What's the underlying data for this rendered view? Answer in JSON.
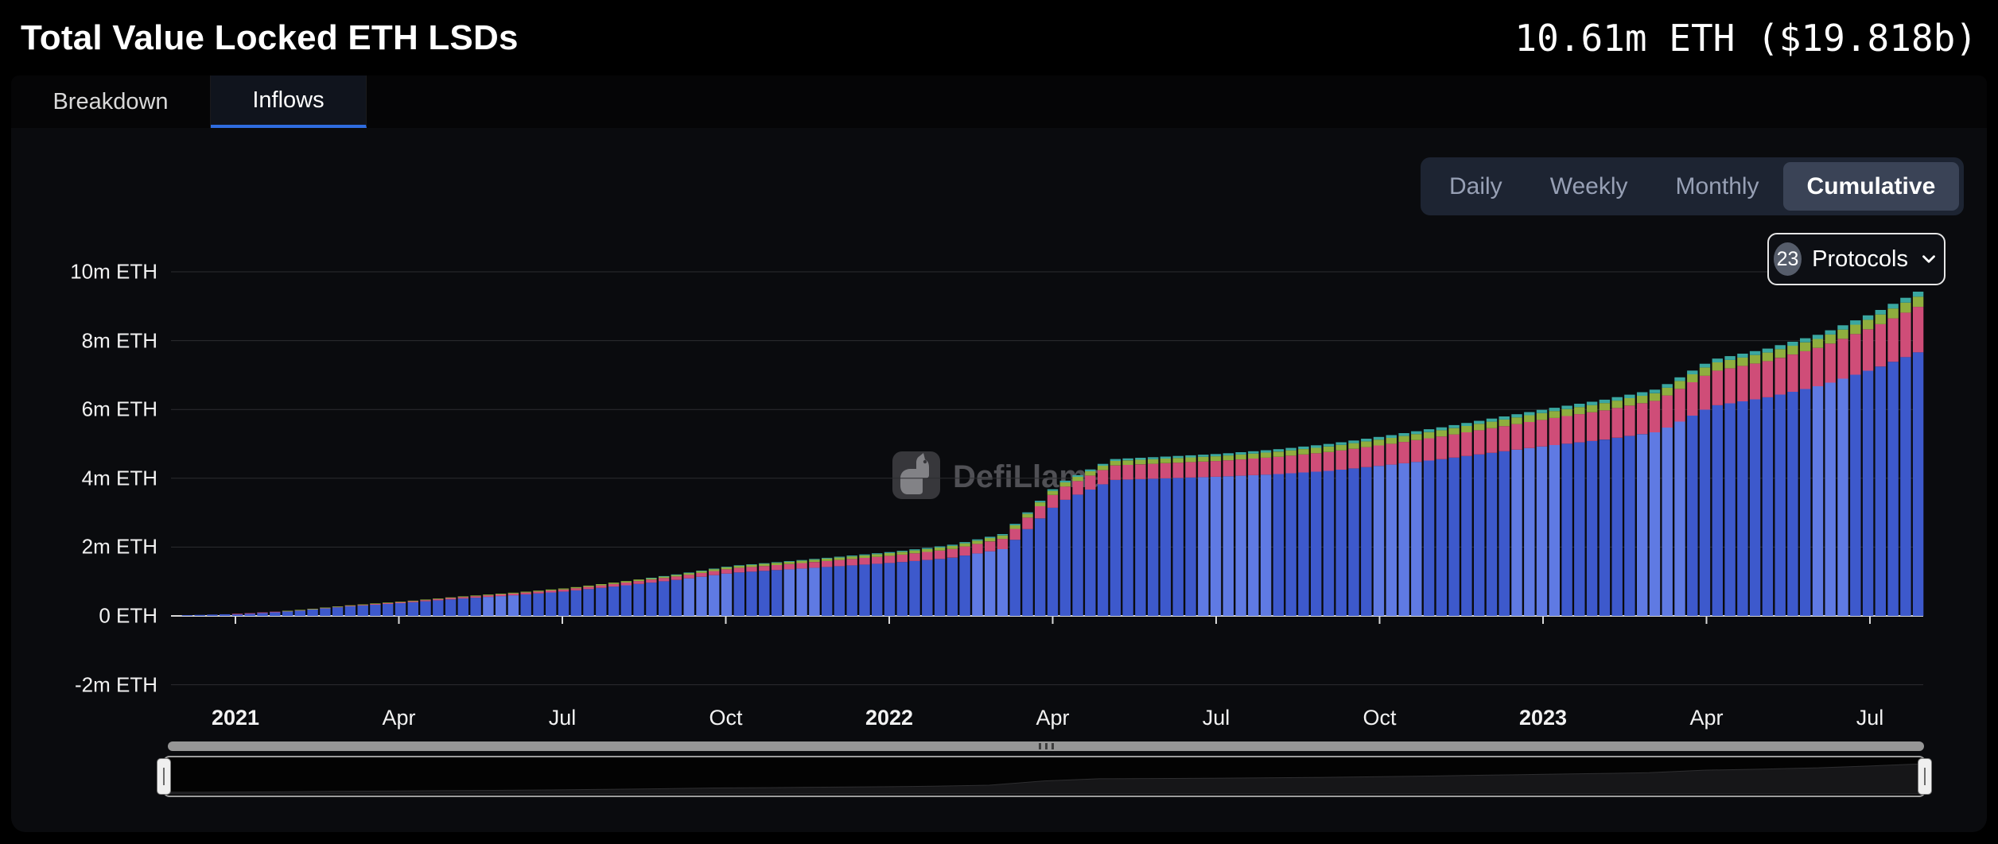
{
  "header": {
    "title": "Total Value Locked ETH LSDs",
    "value": "10.61m ETH ($19.818b)"
  },
  "tabs": [
    {
      "label": "Breakdown",
      "active": false
    },
    {
      "label": "Inflows",
      "active": true
    }
  ],
  "period_selector": {
    "options": [
      "Daily",
      "Weekly",
      "Monthly",
      "Cumulative"
    ],
    "selected": "Cumulative"
  },
  "protocols_filter": {
    "count": "23",
    "label": "Protocols"
  },
  "watermark": {
    "label": "DefiLlama"
  },
  "colors": {
    "accent_blue": "#2f6ce0",
    "panel_bg": "#0a0b0e",
    "page_bg": "#000000"
  },
  "chart_data": {
    "type": "bar",
    "stacked": true,
    "mode": "cumulative-inflows",
    "unit": "m ETH",
    "title": "Total Value Locked ETH LSDs",
    "ytick_values": [
      -2,
      0,
      2,
      4,
      6,
      8,
      10
    ],
    "ylabel_ticks": [
      "-2m ETH",
      "0 ETH",
      "2m ETH",
      "4m ETH",
      "6m ETH",
      "8m ETH",
      "10m ETH"
    ],
    "ylim": [
      -2.6,
      10.9
    ],
    "grid": true,
    "legend": "hidden",
    "x": [
      "2020-12",
      "2021-01",
      "2021-02",
      "2021-03",
      "2021-04",
      "2021-05",
      "2021-06",
      "2021-07",
      "2021-08",
      "2021-09",
      "2021-10",
      "2021-11",
      "2021-12",
      "2022-01",
      "2022-02",
      "2022-03",
      "2022-04",
      "2022-05",
      "2022-06",
      "2022-07",
      "2022-08",
      "2022-09",
      "2022-10",
      "2022-11",
      "2022-12",
      "2023-01",
      "2023-02",
      "2023-03",
      "2023-04",
      "2023-05",
      "2023-06",
      "2023-07",
      "2023-08"
    ],
    "xticks": [
      {
        "month": "2021-01",
        "label": "2021",
        "bold": true
      },
      {
        "month": "2021-04",
        "label": "Apr",
        "bold": false
      },
      {
        "month": "2021-07",
        "label": "Jul",
        "bold": false
      },
      {
        "month": "2021-10",
        "label": "Oct",
        "bold": false
      },
      {
        "month": "2022-01",
        "label": "2022",
        "bold": true
      },
      {
        "month": "2022-04",
        "label": "Apr",
        "bold": false
      },
      {
        "month": "2022-07",
        "label": "Jul",
        "bold": false
      },
      {
        "month": "2022-10",
        "label": "Oct",
        "bold": false
      },
      {
        "month": "2023-01",
        "label": "2023",
        "bold": true
      },
      {
        "month": "2023-04",
        "label": "Apr",
        "bold": false
      },
      {
        "month": "2023-07",
        "label": "Jul",
        "bold": false
      }
    ],
    "series": [
      {
        "name": "blue",
        "color": "#3d59cc",
        "color_light": "#5f7ae3",
        "values": [
          0.02,
          0.06,
          0.15,
          0.28,
          0.38,
          0.5,
          0.6,
          0.72,
          0.88,
          1.05,
          1.25,
          1.35,
          1.45,
          1.55,
          1.68,
          1.95,
          3.3,
          3.95,
          4.0,
          4.05,
          4.12,
          4.22,
          4.38,
          4.55,
          4.75,
          4.95,
          5.12,
          5.35,
          6.1,
          6.35,
          6.7,
          7.2,
          7.8
        ]
      },
      {
        "name": "pink",
        "color": "#cf4d78",
        "values": [
          0,
          0.005,
          0.01,
          0.02,
          0.03,
          0.04,
          0.05,
          0.06,
          0.08,
          0.1,
          0.13,
          0.15,
          0.18,
          0.21,
          0.25,
          0.3,
          0.38,
          0.42,
          0.44,
          0.46,
          0.5,
          0.55,
          0.6,
          0.66,
          0.72,
          0.78,
          0.85,
          0.92,
          1.0,
          1.05,
          1.12,
          1.22,
          1.35
        ]
      },
      {
        "name": "green",
        "color": "#8fae3e",
        "values": [
          0,
          0,
          0.005,
          0.01,
          0.015,
          0.02,
          0.025,
          0.03,
          0.04,
          0.05,
          0.06,
          0.065,
          0.07,
          0.08,
          0.09,
          0.1,
          0.12,
          0.13,
          0.135,
          0.14,
          0.15,
          0.16,
          0.17,
          0.18,
          0.19,
          0.2,
          0.21,
          0.22,
          0.24,
          0.25,
          0.26,
          0.28,
          0.3
        ]
      },
      {
        "name": "teal",
        "color": "#3aa7a0",
        "values": [
          0,
          0,
          0,
          0,
          0,
          0,
          0,
          0,
          0,
          0.01,
          0.015,
          0.02,
          0.025,
          0.03,
          0.035,
          0.04,
          0.05,
          0.055,
          0.06,
          0.065,
          0.07,
          0.075,
          0.08,
          0.085,
          0.09,
          0.095,
          0.1,
          0.105,
          0.11,
          0.115,
          0.12,
          0.13,
          0.15
        ]
      }
    ]
  }
}
